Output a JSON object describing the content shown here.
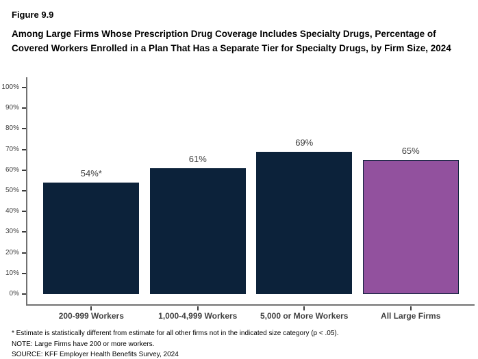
{
  "figure": {
    "number": "Figure 9.9",
    "title": "Among Large Firms Whose Prescription Drug Coverage Includes Specialty Drugs, Percentage of Covered Workers Enrolled in a Plan That Has a Separate Tier for Specialty Drugs, by Firm Size, 2024"
  },
  "chart_data": {
    "type": "bar",
    "title": "Among Large Firms Whose Prescription Drug Coverage Includes Specialty Drugs, Percentage of Covered Workers Enrolled in a Plan That Has a Separate Tier for Specialty Drugs, by Firm Size, 2024",
    "categories": [
      "200-999 Workers",
      "1,000-4,999 Workers",
      "5,000 or More Workers",
      "All Large Firms"
    ],
    "values": [
      54,
      61,
      69,
      65
    ],
    "value_labels": [
      "54%*",
      "61%",
      "69%",
      "65%"
    ],
    "bar_colors": [
      "#0c223a",
      "#0c223a",
      "#0c223a",
      "#92519e"
    ],
    "bar_border_color": "#0c223a",
    "xlabel": "",
    "ylabel": "",
    "ylim": [
      0,
      100
    ],
    "ytick_labels": [
      "0%",
      "10%",
      "20%",
      "30%",
      "40%",
      "50%",
      "60%",
      "70%",
      "80%",
      "90%",
      "100%"
    ],
    "grid": false,
    "legend": false,
    "axis_color": "#717171"
  },
  "notes": {
    "asterisk": "* Estimate is statistically different from estimate for all other firms not in the indicated size category (p < .05).",
    "note": "NOTE: Large Firms have 200 or more workers.",
    "source": "SOURCE: KFF Employer Health Benefits Survey, 2024"
  }
}
